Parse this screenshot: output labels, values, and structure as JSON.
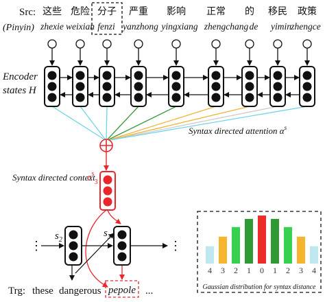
{
  "labels": {
    "src": "Src:",
    "pinyin": "(Pinyin)",
    "encoder_line1": "Encoder",
    "encoder_line2": "states H",
    "syntax_attention": "Syntax directed attention α",
    "syntax_attention_sup": "s",
    "syntax_context": "Syntax directed context",
    "context_symbol": "c",
    "context_sup": "s",
    "context_sub": "3",
    "trg": "Trg:",
    "gaussian_caption": "Gaussian distribution for syntax distance",
    "dec_state_1": "s",
    "dec_state_1_sub": "2",
    "dec_state_2": "s",
    "dec_state_2_sub": "3",
    "ellipsis": "⋮",
    "trg_ellipsis": "..."
  },
  "source_tokens": [
    {
      "hanzi": "这些",
      "pinyin": "zhexie"
    },
    {
      "hanzi": "危险",
      "pinyin": "weixian"
    },
    {
      "hanzi": "分子",
      "pinyin": "fenzi"
    },
    {
      "hanzi": "严重",
      "pinyin": "yanzhong"
    },
    {
      "hanzi": "影响",
      "pinyin": "yingxiang"
    },
    {
      "hanzi": "正常",
      "pinyin": "zhengchang"
    },
    {
      "hanzi": "的",
      "pinyin": "de"
    },
    {
      "hanzi": "移民",
      "pinyin": "yimin"
    },
    {
      "hanzi": "政策",
      "pinyin": "zhengce"
    }
  ],
  "target_tokens": [
    "these",
    "dangerous",
    "pepole"
  ],
  "highlighted_source_index": 2,
  "gaussian": {
    "distances": [
      "4",
      "3",
      "2",
      "1",
      "0",
      "1",
      "2",
      "3",
      "4"
    ],
    "relative_weights": [
      0.36,
      0.56,
      0.76,
      0.93,
      1.0,
      0.93,
      0.76,
      0.56,
      0.36
    ],
    "colors": [
      "#bfe7f0",
      "#f6b52e",
      "#37d14f",
      "#2f9a34",
      "#ee2b2b",
      "#2f9a34",
      "#37d14f",
      "#f6b52e",
      "#bfe7f0"
    ]
  },
  "colors": {
    "attention_lines": [
      "#6fd3ea",
      "#6fd3ea",
      "#6fd3ea",
      "#3a9a3c",
      "#3a9a3c",
      "#f0b23a",
      "#f0b23a",
      "#cccccc",
      "#6fd3ea"
    ],
    "highlight": "#e8262c",
    "cell": "#111111"
  }
}
